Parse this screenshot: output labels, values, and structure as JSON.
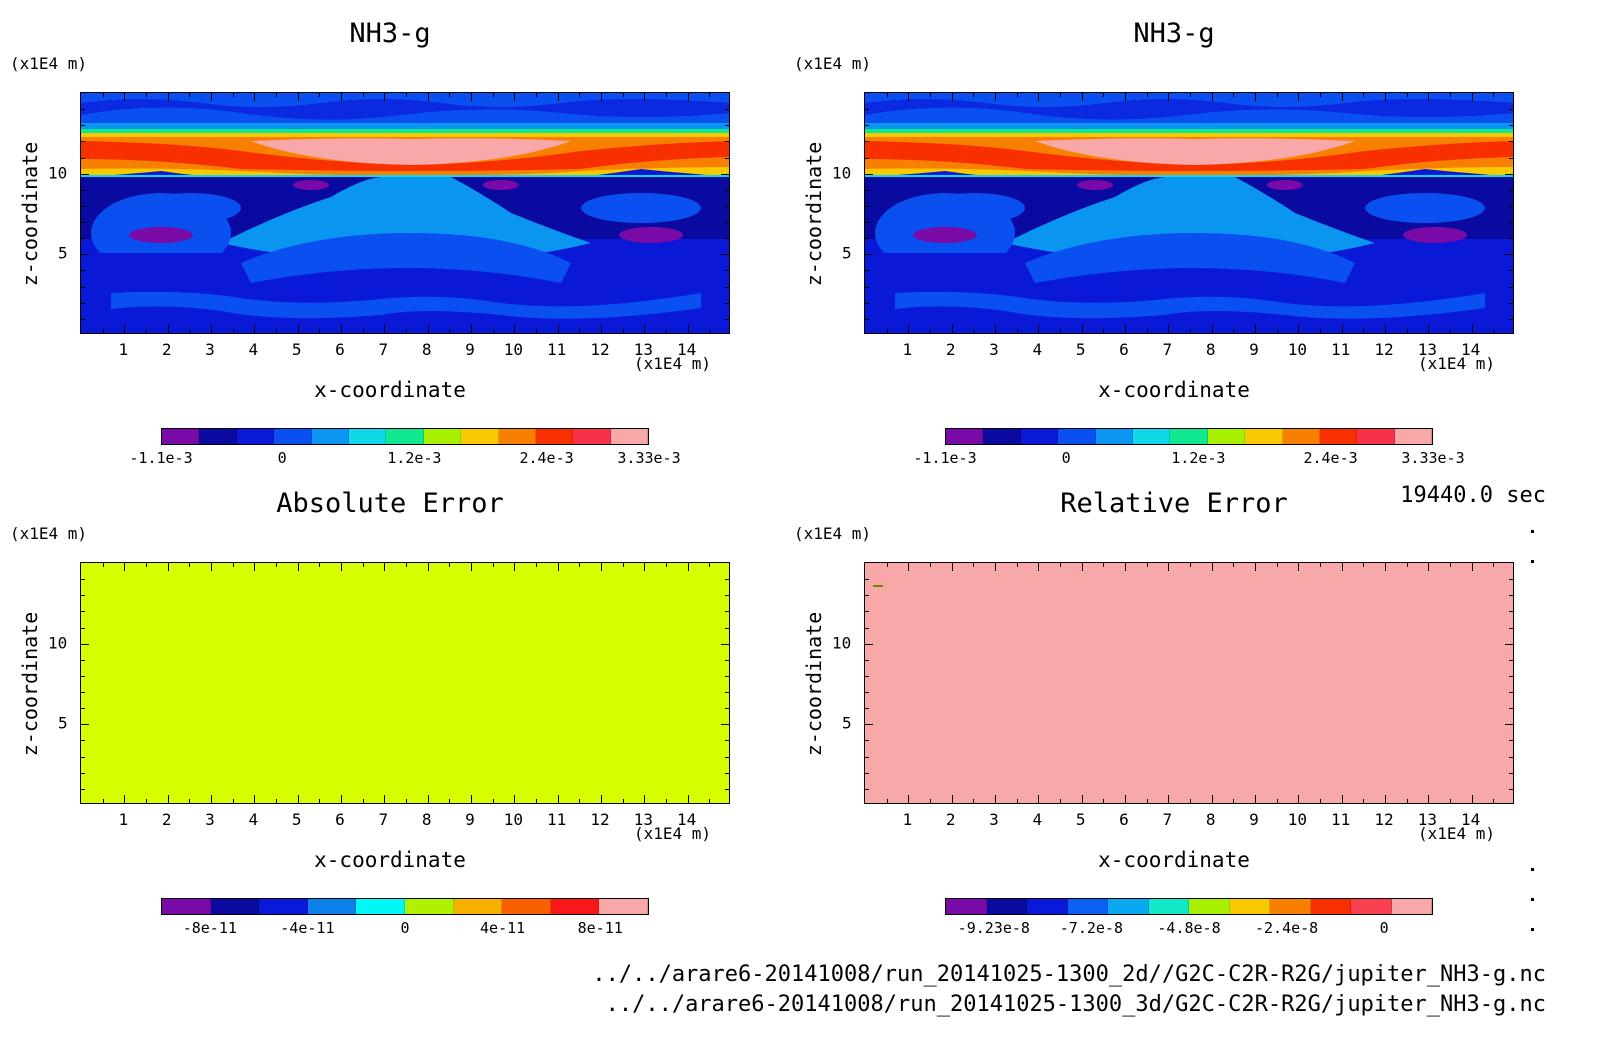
{
  "chart_data": [
    {
      "type": "heatmap",
      "title": "NH3-g",
      "xlabel": "x-coordinate",
      "ylabel": "z-coordinate",
      "x_unit": "(x1E4 m)",
      "y_unit": "(x1E4 m)",
      "xticks": [
        "1",
        "2",
        "3",
        "4",
        "5",
        "6",
        "7",
        "8",
        "9",
        "10",
        "11",
        "12",
        "13",
        "14"
      ],
      "yticks": [
        "5",
        "10"
      ],
      "xlim": [
        0,
        15
      ],
      "ylim": [
        0,
        15
      ],
      "colorbar": {
        "labels": [
          "-1.1e-3",
          "0",
          "1.2e-3",
          "2.4e-3",
          "3.33e-3"
        ],
        "range": [
          -0.0011,
          0.00333
        ],
        "colors": [
          "#7a0aa8",
          "#0a0aa0",
          "#0a18d8",
          "#0a50f0",
          "#0a96f0",
          "#10d8e8",
          "#10e890",
          "#a8f000",
          "#f8c800",
          "#f88000",
          "#f83000",
          "#f8304a",
          "#f8a8a8"
        ]
      },
      "field": "stratified: low background, red band of high values near z=10-12"
    },
    {
      "type": "heatmap",
      "title": "NH3-g",
      "xlabel": "x-coordinate",
      "ylabel": "z-coordinate",
      "x_unit": "(x1E4 m)",
      "y_unit": "(x1E4 m)",
      "xticks": [
        "1",
        "2",
        "3",
        "4",
        "5",
        "6",
        "7",
        "8",
        "9",
        "10",
        "11",
        "12",
        "13",
        "14"
      ],
      "yticks": [
        "5",
        "10"
      ],
      "xlim": [
        0,
        15
      ],
      "ylim": [
        0,
        15
      ],
      "colorbar": {
        "labels": [
          "-1.1e-3",
          "0",
          "1.2e-3",
          "2.4e-3",
          "3.33e-3"
        ],
        "range": [
          -0.0011,
          0.00333
        ],
        "colors": [
          "#7a0aa8",
          "#0a0aa0",
          "#0a18d8",
          "#0a50f0",
          "#0a96f0",
          "#10d8e8",
          "#10e890",
          "#a8f000",
          "#f8c800",
          "#f88000",
          "#f83000",
          "#f8304a",
          "#f8a8a8"
        ]
      }
    },
    {
      "type": "heatmap",
      "title": "Absolute Error",
      "xlabel": "x-coordinate",
      "ylabel": "z-coordinate",
      "x_unit": "(x1E4 m)",
      "y_unit": "(x1E4 m)",
      "xticks": [
        "1",
        "2",
        "3",
        "4",
        "5",
        "6",
        "7",
        "8",
        "9",
        "10",
        "11",
        "12",
        "13",
        "14"
      ],
      "yticks": [
        "5",
        "10"
      ],
      "xlim": [
        0,
        15
      ],
      "ylim": [
        0,
        15
      ],
      "fill_color": "#d8ff00",
      "colorbar": {
        "labels": [
          "-8e-11",
          "-4e-11",
          "0",
          "4e-11",
          "8e-11"
        ],
        "colors": [
          "#7a0aa8",
          "#0a0aa0",
          "#0a18d8",
          "#0a80e8",
          "#00f8f8",
          "#b0f000",
          "#f8b000",
          "#f86000",
          "#f81818",
          "#f8a8a8"
        ]
      }
    },
    {
      "type": "heatmap",
      "title": "Relative Error",
      "xlabel": "x-coordinate",
      "ylabel": "z-coordinate",
      "x_unit": "(x1E4 m)",
      "y_unit": "(x1E4 m)",
      "xticks": [
        "1",
        "2",
        "3",
        "4",
        "5",
        "6",
        "7",
        "8",
        "9",
        "10",
        "11",
        "12",
        "13",
        "14"
      ],
      "yticks": [
        "5",
        "10"
      ],
      "xlim": [
        0,
        15
      ],
      "ylim": [
        0,
        15
      ],
      "fill_color": "#f8a8a8",
      "colorbar": {
        "labels": [
          "-9.23e-8",
          "-7.2e-8",
          "-4.8e-8",
          "-2.4e-8",
          "0"
        ],
        "colors": [
          "#7a0aa8",
          "#0a0aa0",
          "#0a18d8",
          "#0a60f0",
          "#0aa8f0",
          "#10e8c8",
          "#a8f000",
          "#f8c800",
          "#f88000",
          "#f83000",
          "#f84050",
          "#f8a8a8"
        ]
      }
    }
  ],
  "time_label": "19440.0 sec",
  "file_paths": [
    "../../arare6-20141008/run_20141025-1300_2d//G2C-C2R-R2G/jupiter_NH3-g.nc",
    "../../arare6-20141008/run_20141025-1300_3d/G2C-C2R-R2G/jupiter_NH3-g.nc"
  ]
}
